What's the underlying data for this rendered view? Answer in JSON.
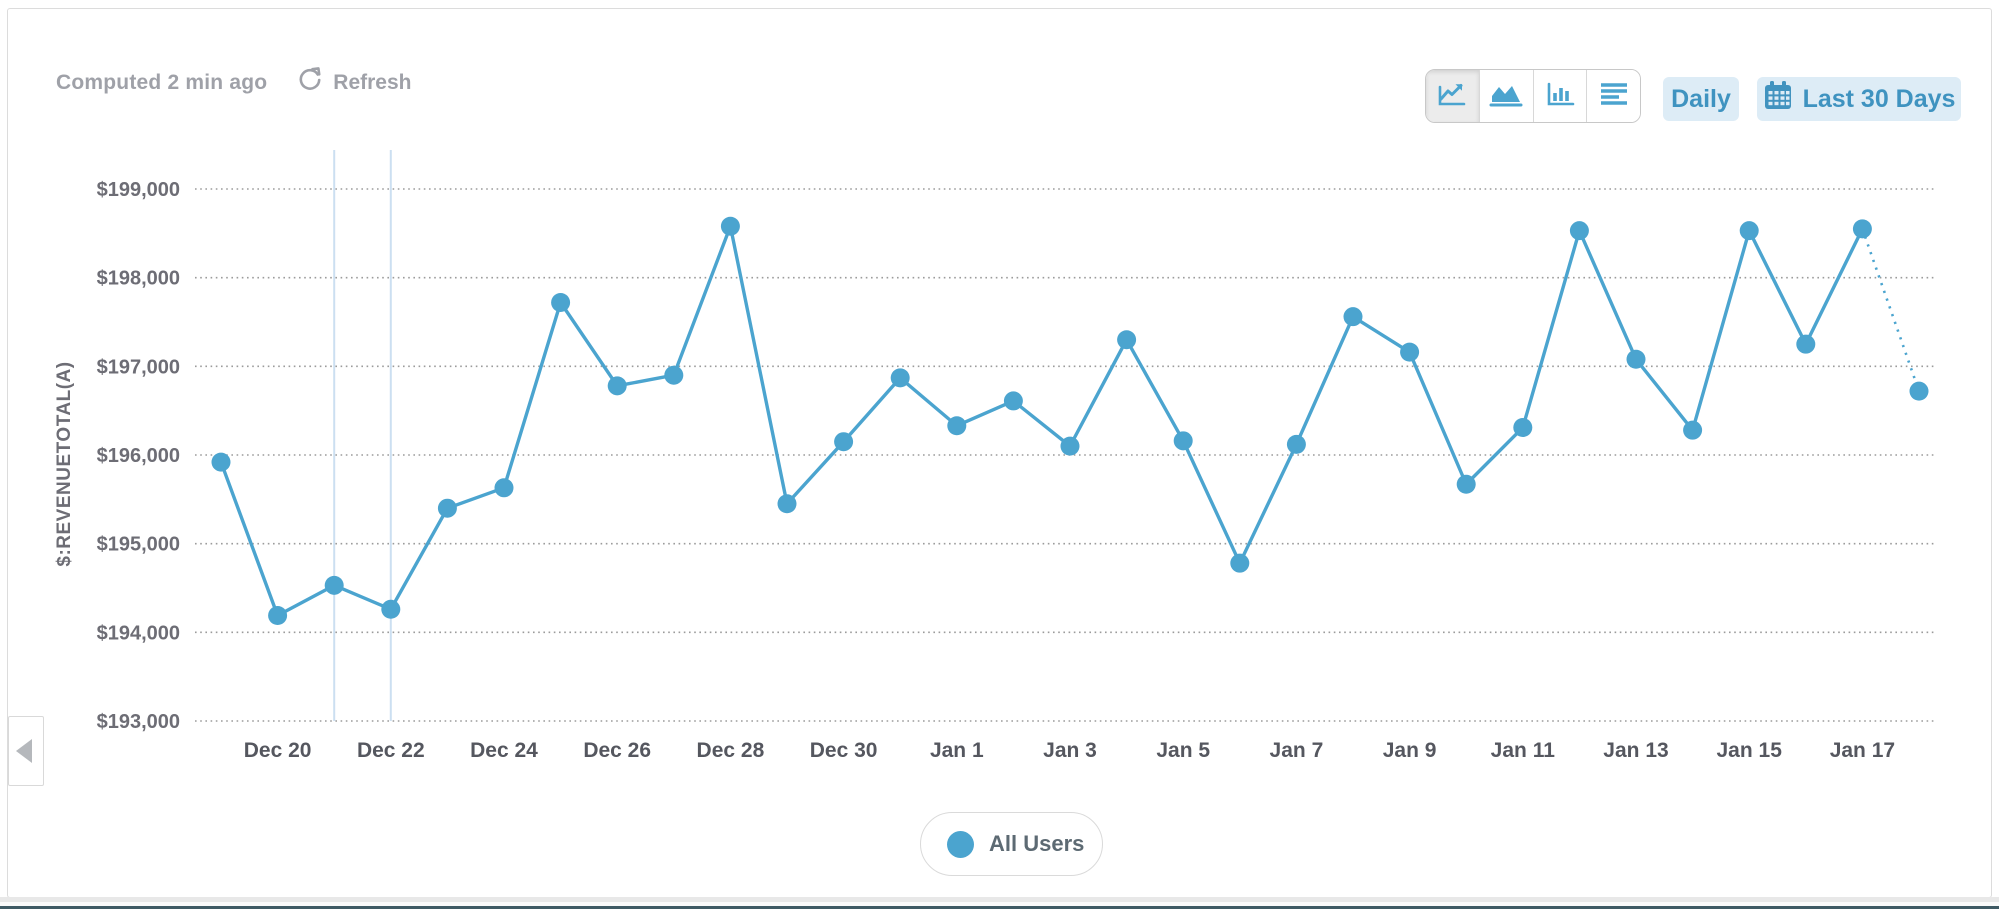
{
  "header": {
    "computed_label": "Computed 2 min ago",
    "refresh_label": "Refresh"
  },
  "toolbar": {
    "chart_types": [
      {
        "name": "line",
        "selected": true
      },
      {
        "name": "area",
        "selected": false
      },
      {
        "name": "bar",
        "selected": false
      },
      {
        "name": "table",
        "selected": false
      }
    ],
    "granularity_label": "Daily",
    "date_range_label": "Last 30 Days"
  },
  "legend": {
    "label": "All Users",
    "color": "#4BA4CF"
  },
  "colors": {
    "series_blue": "#4BA4CF",
    "button_bg": "#ddecf6",
    "button_text": "#3f93c0",
    "muted_text": "#9fa1a8",
    "axis_text": "#6d6d75",
    "x_axis_text": "#55575f",
    "grid_dot": "#9b9b9b",
    "highlight_line": "#ccdff1",
    "bottom_bar": "#3f5a64"
  },
  "chart_data": {
    "type": "line",
    "title": "",
    "ylabel": "$:REVENUETOTAL(A)",
    "xlabel": "",
    "ylim": [
      193000,
      199000
    ],
    "y_tick_step": 1000,
    "y_tick_prefix": "$",
    "grid": "dotted-horizontal",
    "legend_position": "bottom-center",
    "x": [
      "Dec 19",
      "Dec 20",
      "Dec 21",
      "Dec 22",
      "Dec 23",
      "Dec 24",
      "Dec 25",
      "Dec 26",
      "Dec 27",
      "Dec 28",
      "Dec 29",
      "Dec 30",
      "Dec 31",
      "Jan 1",
      "Jan 2",
      "Jan 3",
      "Jan 4",
      "Jan 5",
      "Jan 6",
      "Jan 7",
      "Jan 8",
      "Jan 9",
      "Jan 10",
      "Jan 11",
      "Jan 12",
      "Jan 13",
      "Jan 14",
      "Jan 15",
      "Jan 16",
      "Jan 17",
      "Jan 18"
    ],
    "series": [
      {
        "name": "All Users",
        "color": "#4BA4CF",
        "values": [
          195920,
          194190,
          194530,
          194260,
          195400,
          195630,
          197720,
          196780,
          196900,
          198580,
          195450,
          196150,
          196870,
          196330,
          196610,
          196100,
          197300,
          196160,
          194780,
          196120,
          197560,
          197160,
          195670,
          196310,
          198530,
          197080,
          196280,
          198530,
          197250,
          198550,
          196720
        ]
      }
    ],
    "last_point_projected": true,
    "x_tick_labels": [
      "Dec 20",
      "Dec 22",
      "Dec 24",
      "Dec 26",
      "Dec 28",
      "Dec 30",
      "Jan 1",
      "Jan 3",
      "Jan 5",
      "Jan 7",
      "Jan 9",
      "Jan 11",
      "Jan 13",
      "Jan 15",
      "Jan 17"
    ],
    "highlighted_x": [
      "Dec 21",
      "Dec 22"
    ]
  }
}
